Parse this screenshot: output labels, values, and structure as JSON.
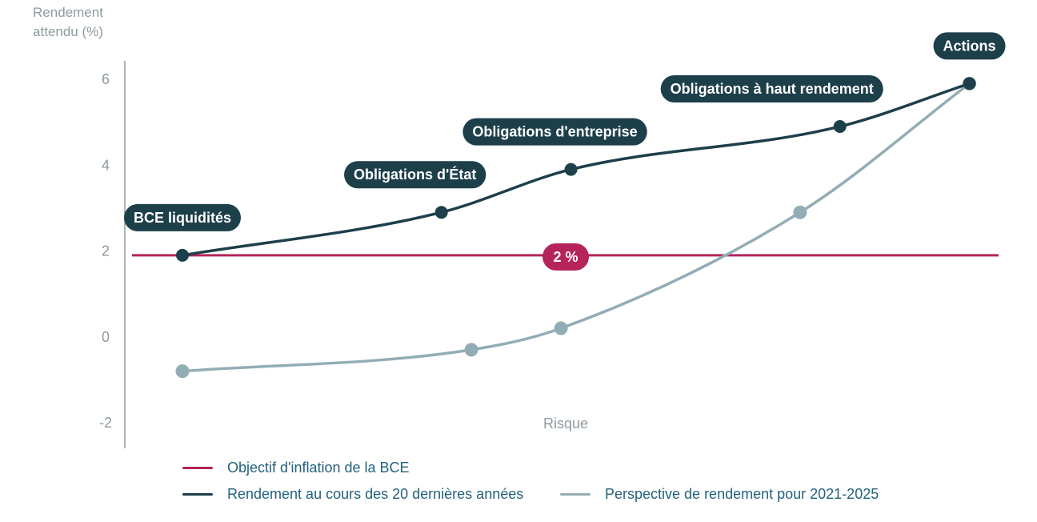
{
  "chart_data": {
    "type": "line",
    "ylabel": [
      "Rendement",
      "attendu (%)"
    ],
    "xlabel": "Risque",
    "ylim": [
      -2,
      6.5
    ],
    "yticks": [
      "6",
      "4",
      "2",
      "0",
      "-2"
    ],
    "ytick_values": [
      6,
      4,
      2,
      0,
      -2
    ],
    "grid": false,
    "categories": [
      "BCE liquidités",
      "Obligations d'État",
      "Obligations d'entreprise",
      "Obligations à haut rendement",
      "Actions"
    ],
    "series": [
      {
        "name": "Rendement au cours des 20 dernières années",
        "color": "#1d3f4a",
        "risk": [
          1.0,
          3.6,
          4.9,
          7.6,
          8.9
        ],
        "values": [
          1.9,
          2.9,
          3.9,
          4.9,
          5.9
        ]
      },
      {
        "name": "Perspective de rendement pour 2021-2025",
        "color": "#93adb5",
        "risk": [
          1.0,
          3.9,
          4.8,
          7.2,
          8.9
        ],
        "values": [
          -0.8,
          -0.3,
          0.2,
          2.9,
          5.9
        ]
      }
    ],
    "reference_line": {
      "name": "Objectif d'inflation de la BCE",
      "value": 1.9,
      "label": "2 %",
      "color": "#b5245a"
    },
    "asset_labels": [
      "BCE liquidités",
      "Obligations d'État",
      "Obligations d'entreprise",
      "Obligations à haut rendement",
      "Actions"
    ],
    "legend": [
      {
        "label": "Objectif d'inflation de la BCE",
        "color": "#b5245a"
      },
      {
        "label": "Rendement au cours des 20 dernières années",
        "color": "#1d3f4a"
      },
      {
        "label": "Perspective de rendement pour 2021-2025",
        "color": "#93adb5"
      }
    ],
    "legend_placement": "bottom"
  }
}
